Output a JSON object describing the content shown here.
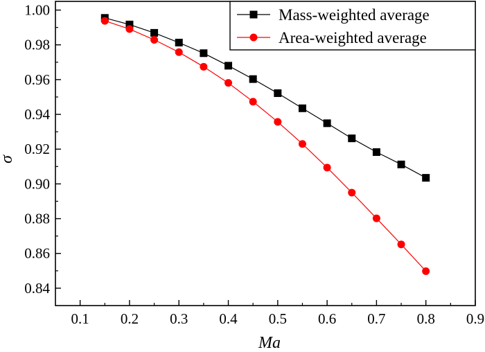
{
  "chart_data": {
    "type": "line",
    "title": "",
    "xlabel": "Ma",
    "ylabel": "σ",
    "xlim": [
      0.05,
      0.9
    ],
    "ylim": [
      0.83,
      1.005
    ],
    "xticks": [
      0.1,
      0.2,
      0.3,
      0.4,
      0.5,
      0.6,
      0.7,
      0.8,
      0.9
    ],
    "xtick_labels": [
      "0.1",
      "0.2",
      "0.3",
      "0.4",
      "0.5",
      "0.6",
      "0.7",
      "0.8",
      "0.9"
    ],
    "yticks": [
      0.84,
      0.86,
      0.88,
      0.9,
      0.92,
      0.94,
      0.96,
      0.98,
      1.0
    ],
    "ytick_labels": [
      "0.84",
      "0.86",
      "0.88",
      "0.90",
      "0.92",
      "0.94",
      "0.96",
      "0.98",
      "1.00"
    ],
    "grid": false,
    "legend_position": "top-right",
    "x": [
      0.15,
      0.2,
      0.25,
      0.3,
      0.35,
      0.4,
      0.45,
      0.5,
      0.55,
      0.6,
      0.65,
      0.7,
      0.75,
      0.8
    ],
    "series": [
      {
        "name": "Mass-weighted average",
        "color": "#000000",
        "marker": "square",
        "values": [
          0.9955,
          0.9917,
          0.9869,
          0.9813,
          0.9752,
          0.968,
          0.9603,
          0.9522,
          0.9435,
          0.9349,
          0.9262,
          0.9183,
          0.9112,
          0.9035
        ]
      },
      {
        "name": "Area-weighted average",
        "color": "#ff0000",
        "marker": "circle",
        "values": [
          0.9938,
          0.9891,
          0.9829,
          0.9758,
          0.9674,
          0.9581,
          0.9473,
          0.9357,
          0.923,
          0.9094,
          0.895,
          0.8802,
          0.8652,
          0.8498
        ]
      }
    ]
  }
}
